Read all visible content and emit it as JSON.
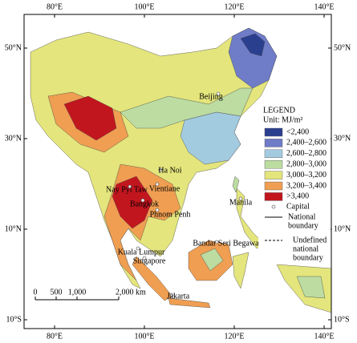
{
  "map": {
    "lon_ticks": [
      {
        "value": 80,
        "label": "80°E"
      },
      {
        "value": 100,
        "label": "100°E"
      },
      {
        "value": 120,
        "label": "120°E"
      },
      {
        "value": 140,
        "label": "140°E"
      }
    ],
    "lat_ticks": [
      {
        "value": 50,
        "label": "50°N"
      },
      {
        "value": 30,
        "label": "30°N"
      },
      {
        "value": 10,
        "label": "10°N"
      },
      {
        "value": -10,
        "label": "10°S"
      }
    ],
    "capitals": [
      "Beijing",
      "Ha Noi",
      "Nay Pyi Taw",
      "Vientiane",
      "Bangkok",
      "Phnom Penh",
      "Manila",
      "Bandar Seri Begawan",
      "Kuala Lumpur",
      "Singapore",
      "Jakarta"
    ],
    "scale_bar": [
      "0",
      "500",
      "1,000",
      "2,000 km"
    ],
    "legend": {
      "title": "LEGEND",
      "unit": "Unit: MJ/m²",
      "classes": [
        {
          "label": "<2,400",
          "color": "#2b3f8f"
        },
        {
          "label": "2,400–2,600",
          "color": "#6f7cc8"
        },
        {
          "label": "2,600–2,800",
          "color": "#a3cbe0"
        },
        {
          "label": "2,800–3,000",
          "color": "#bcdca2"
        },
        {
          "label": "3,000–3,200",
          "color": "#e4e57c"
        },
        {
          "label": "3,200–3,400",
          "color": "#ef9e52"
        },
        {
          "label": ">3,400",
          "color": "#c2161f"
        }
      ],
      "capital": "Capital",
      "national_boundary": [
        "National",
        "boundary"
      ],
      "undefined_boundary": [
        "Undefined",
        "national",
        "boundary"
      ]
    }
  }
}
